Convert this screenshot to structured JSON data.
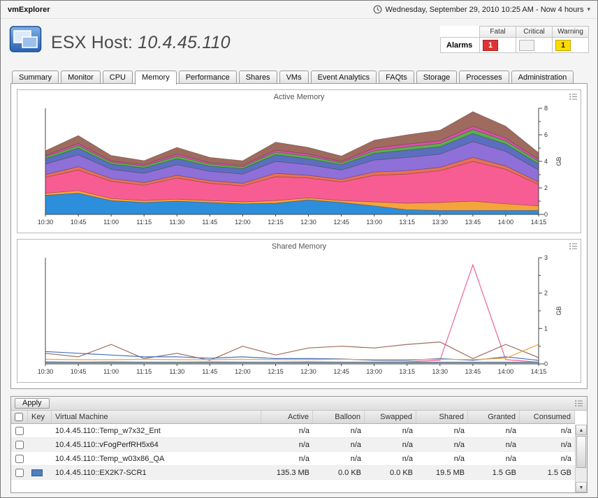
{
  "topbar": {
    "app_title": "vmExplorer",
    "time_range": "Wednesday, September 29, 2010 10:25 AM - Now 4 hours"
  },
  "host": {
    "title_prefix": "ESX Host: ",
    "ip": "10.4.45.110"
  },
  "alarms": {
    "title": "Alarms",
    "columns": [
      "Fatal",
      "Critical",
      "Warning"
    ],
    "counts": {
      "fatal": "1",
      "critical": "",
      "warning": "1"
    },
    "colors": {
      "fatal": "#e03232",
      "critical": "#f2f2f2",
      "warning": "#ffdc00"
    }
  },
  "tabs": [
    {
      "label": "Summary"
    },
    {
      "label": "Monitor"
    },
    {
      "label": "CPU"
    },
    {
      "label": "Memory",
      "active": true
    },
    {
      "label": "Performance"
    },
    {
      "label": "Shares"
    },
    {
      "label": "VMs"
    },
    {
      "label": "Event Analytics"
    },
    {
      "label": "FAQts"
    },
    {
      "label": "Storage"
    },
    {
      "label": "Processes"
    },
    {
      "label": "Administration"
    }
  ],
  "chart_data": [
    {
      "type": "area",
      "stacked": true,
      "title": "Active Memory",
      "ylabel": "GB",
      "ylim": [
        0,
        8
      ],
      "yticks": [
        0,
        2,
        4,
        6,
        8
      ],
      "ytick_minor": 1,
      "grid": false,
      "legend": "none",
      "x_labels": [
        "10:30",
        "10:45",
        "11:00",
        "11:15",
        "11:30",
        "11:45",
        "12:00",
        "12:15",
        "12:30",
        "12:45",
        "13:00",
        "13:15",
        "13:30",
        "13:45",
        "14:00",
        "14:15"
      ],
      "series": [
        {
          "name": "series-blue",
          "color": "#2d8edc",
          "values": [
            1.45,
            1.6,
            1.05,
            0.9,
            1.0,
            0.9,
            0.8,
            0.85,
            1.1,
            0.9,
            0.65,
            0.35,
            0.3,
            0.3,
            0.3,
            0.3
          ]
        },
        {
          "name": "series-orange",
          "color": "#f5a33c",
          "values": [
            0.15,
            0.2,
            0.15,
            0.15,
            0.15,
            0.15,
            0.15,
            0.2,
            0.15,
            0.15,
            0.3,
            0.5,
            0.6,
            0.7,
            0.5,
            0.35
          ]
        },
        {
          "name": "series-pink",
          "color": "#f75d92",
          "values": [
            1.2,
            1.55,
            1.3,
            1.15,
            1.6,
            1.3,
            1.2,
            1.8,
            1.5,
            1.4,
            2.0,
            2.2,
            2.4,
            3.0,
            2.6,
            1.6
          ]
        },
        {
          "name": "series-salmon",
          "color": "#e8705a",
          "values": [
            0.2,
            0.25,
            0.2,
            0.2,
            0.2,
            0.2,
            0.2,
            0.25,
            0.2,
            0.2,
            0.25,
            0.25,
            0.25,
            0.3,
            0.25,
            0.2
          ]
        },
        {
          "name": "series-purple",
          "color": "#8f6fd8",
          "values": [
            0.8,
            0.9,
            0.7,
            0.7,
            0.8,
            0.7,
            0.7,
            0.9,
            0.8,
            0.7,
            0.9,
            1.0,
            1.0,
            1.2,
            1.1,
            0.9
          ]
        },
        {
          "name": "series-indigo",
          "color": "#5b6fc0",
          "values": [
            0.4,
            0.5,
            0.4,
            0.4,
            0.45,
            0.4,
            0.4,
            0.5,
            0.45,
            0.4,
            0.5,
            0.55,
            0.55,
            0.6,
            0.55,
            0.45
          ]
        },
        {
          "name": "series-green",
          "color": "#58b04c",
          "values": [
            0.15,
            0.2,
            0.15,
            0.15,
            0.2,
            0.15,
            0.15,
            0.2,
            0.2,
            0.15,
            0.2,
            0.25,
            0.25,
            0.3,
            0.25,
            0.2
          ]
        },
        {
          "name": "series-magenta",
          "color": "#d94fb0",
          "values": [
            0.1,
            0.15,
            0.1,
            0.1,
            0.15,
            0.1,
            0.1,
            0.15,
            0.15,
            0.1,
            0.2,
            0.2,
            0.2,
            0.25,
            0.2,
            0.15
          ]
        },
        {
          "name": "series-brown",
          "color": "#9e6b5e",
          "values": [
            0.35,
            0.6,
            0.4,
            0.3,
            0.5,
            0.4,
            0.35,
            0.6,
            0.5,
            0.4,
            0.6,
            0.7,
            0.8,
            1.1,
            0.9,
            0.5
          ]
        }
      ]
    },
    {
      "type": "line",
      "stacked": false,
      "title": "Shared Memory",
      "ylabel": "GB",
      "ylim": [
        0,
        3
      ],
      "yticks": [
        0,
        1,
        2,
        3
      ],
      "ytick_minor": 0.5,
      "grid": false,
      "legend": "none",
      "x_labels": [
        "10:30",
        "10:45",
        "11:00",
        "11:15",
        "11:30",
        "11:45",
        "12:00",
        "12:15",
        "12:30",
        "12:45",
        "13:00",
        "13:15",
        "13:30",
        "13:45",
        "14:00",
        "14:15"
      ],
      "series": [
        {
          "name": "series-pink",
          "color": "#f0609a",
          "values": [
            0.06,
            0.05,
            0.06,
            0.05,
            0.05,
            0.06,
            0.05,
            0.05,
            0.06,
            0.05,
            0.05,
            0.06,
            0.1,
            2.8,
            0.12,
            0.05
          ]
        },
        {
          "name": "series-brown",
          "color": "#9e6b5e",
          "values": [
            0.3,
            0.2,
            0.55,
            0.15,
            0.3,
            0.1,
            0.5,
            0.25,
            0.45,
            0.5,
            0.45,
            0.55,
            0.62,
            0.15,
            0.55,
            0.18
          ]
        },
        {
          "name": "series-blue",
          "color": "#4472c4",
          "values": [
            0.35,
            0.3,
            0.25,
            0.2,
            0.2,
            0.16,
            0.2,
            0.15,
            0.15,
            0.14,
            0.1,
            0.1,
            0.15,
            0.1,
            0.2,
            0.1
          ]
        },
        {
          "name": "series-orange",
          "color": "#f5a33c",
          "values": [
            0.13,
            0.12,
            0.12,
            0.13,
            0.12,
            0.12,
            0.13,
            0.12,
            0.12,
            0.13,
            0.12,
            0.12,
            0.13,
            0.12,
            0.16,
            0.55
          ]
        },
        {
          "name": "series-green",
          "color": "#58b04c",
          "values": [
            0.05,
            0.05,
            0.05,
            0.05,
            0.05,
            0.05,
            0.05,
            0.05,
            0.05,
            0.05,
            0.05,
            0.05,
            0.05,
            0.05,
            0.05,
            0.05
          ]
        },
        {
          "name": "series-purple",
          "color": "#8f6fd8",
          "values": [
            0.03,
            0.03,
            0.03,
            0.03,
            0.03,
            0.03,
            0.03,
            0.03,
            0.03,
            0.03,
            0.03,
            0.03,
            0.03,
            0.03,
            0.03,
            0.03
          ]
        }
      ]
    }
  ],
  "table": {
    "apply_label": "Apply",
    "columns": [
      "Key",
      "Virtual Machine",
      "Active",
      "Balloon",
      "Swapped",
      "Shared",
      "Granted",
      "Consumed"
    ],
    "rows": [
      {
        "vm": "10.4.45.110::Temp_w7x32_Ent",
        "key_color": "",
        "values": [
          "n/a",
          "n/a",
          "n/a",
          "n/a",
          "n/a",
          "n/a"
        ]
      },
      {
        "vm": "10.4.45.110::vFogPerfRH5x64",
        "key_color": "",
        "values": [
          "n/a",
          "n/a",
          "n/a",
          "n/a",
          "n/a",
          "n/a"
        ]
      },
      {
        "vm": "10.4.45.110::Temp_w03x86_QA",
        "key_color": "",
        "values": [
          "n/a",
          "n/a",
          "n/a",
          "n/a",
          "n/a",
          "n/a"
        ]
      },
      {
        "vm": "10.4.45.110::EX2K7-SCR1",
        "key_color": "#4f81bd",
        "values": [
          "135.3 MB",
          "0.0 KB",
          "0.0 KB",
          "19.5 MB",
          "1.5 GB",
          "1.5 GB"
        ]
      }
    ]
  }
}
